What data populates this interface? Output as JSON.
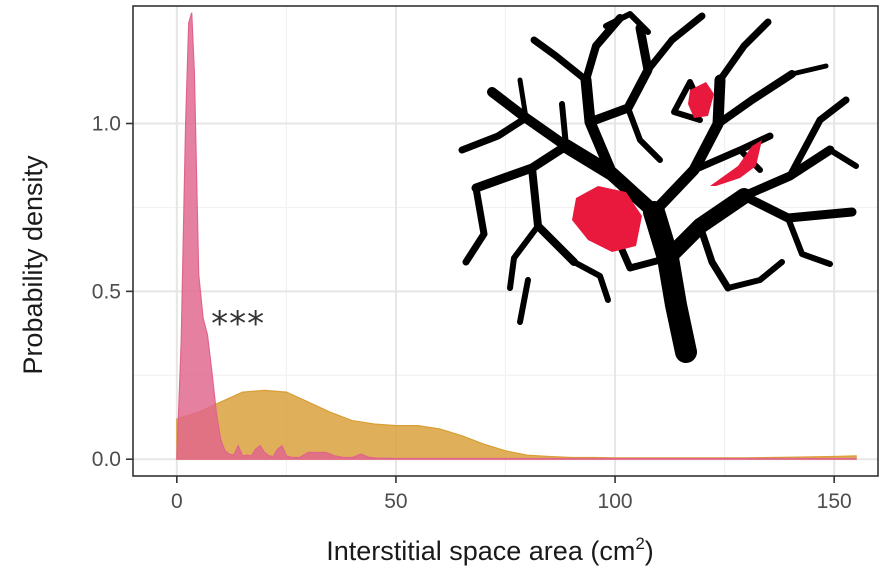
{
  "chart_data": {
    "type": "area",
    "title": "",
    "xlabel": "Interstitial space area (cm",
    "xlabel_sup": "2",
    "xlabel_suffix": ")",
    "ylabel": "Probability density",
    "xlim": [
      -10,
      160
    ],
    "ylim": [
      -0.05,
      1.35
    ],
    "x_axis_breaks": [
      0,
      50,
      100,
      150
    ],
    "x_tick_labels": [
      "0",
      "50",
      "100",
      "150"
    ],
    "y_axis_breaks": [
      0.0,
      0.5,
      1.0
    ],
    "y_tick_labels": [
      "0.0",
      "0.5",
      "1.0"
    ],
    "grid": true,
    "legend": "none",
    "annotation": "***",
    "annotation_position": {
      "x": 14,
      "y": 0.37
    },
    "series": [
      {
        "color": "#d99e35",
        "x": [
          0,
          5,
          10,
          15,
          20,
          25,
          30,
          35,
          40,
          45,
          50,
          55,
          60,
          65,
          70,
          75,
          80,
          85,
          90,
          95,
          100,
          110,
          120,
          130,
          140,
          150,
          155
        ],
        "y": [
          0.12,
          0.14,
          0.17,
          0.2,
          0.205,
          0.2,
          0.17,
          0.14,
          0.115,
          0.105,
          0.1,
          0.1,
          0.09,
          0.07,
          0.045,
          0.025,
          0.012,
          0.008,
          0.005,
          0.005,
          0.004,
          0.004,
          0.004,
          0.004,
          0.006,
          0.008,
          0.01
        ]
      },
      {
        "color": "#e0648c",
        "x": [
          0,
          1,
          2,
          2.7,
          3.4,
          4,
          5,
          6,
          7,
          8,
          9,
          10,
          11,
          12,
          13,
          14,
          15,
          16,
          17,
          18,
          19,
          20,
          21,
          22,
          23,
          24,
          25,
          26,
          27,
          28,
          30,
          32,
          34,
          36,
          38,
          40,
          42,
          44,
          46,
          48,
          50,
          60,
          80,
          100,
          120,
          140,
          155
        ],
        "y": [
          0.0,
          0.35,
          1.0,
          1.3,
          1.33,
          1.15,
          0.55,
          0.42,
          0.37,
          0.26,
          0.14,
          0.06,
          0.025,
          0.015,
          0.012,
          0.04,
          0.01,
          0.012,
          0.01,
          0.03,
          0.04,
          0.02,
          0.01,
          0.008,
          0.03,
          0.04,
          0.01,
          0.006,
          0.005,
          0.005,
          0.02,
          0.02,
          0.02,
          0.01,
          0.005,
          0.005,
          0.015,
          0.005,
          0.003,
          0.003,
          0.002,
          0.002,
          0.002,
          0.002,
          0.002,
          0.002,
          0.002
        ]
      }
    ],
    "inset": {
      "depiction": "black branching tree silhouette with red-filled interstitial gaps",
      "branch_color": "#000000",
      "highlight_color": "#e8193c"
    }
  }
}
